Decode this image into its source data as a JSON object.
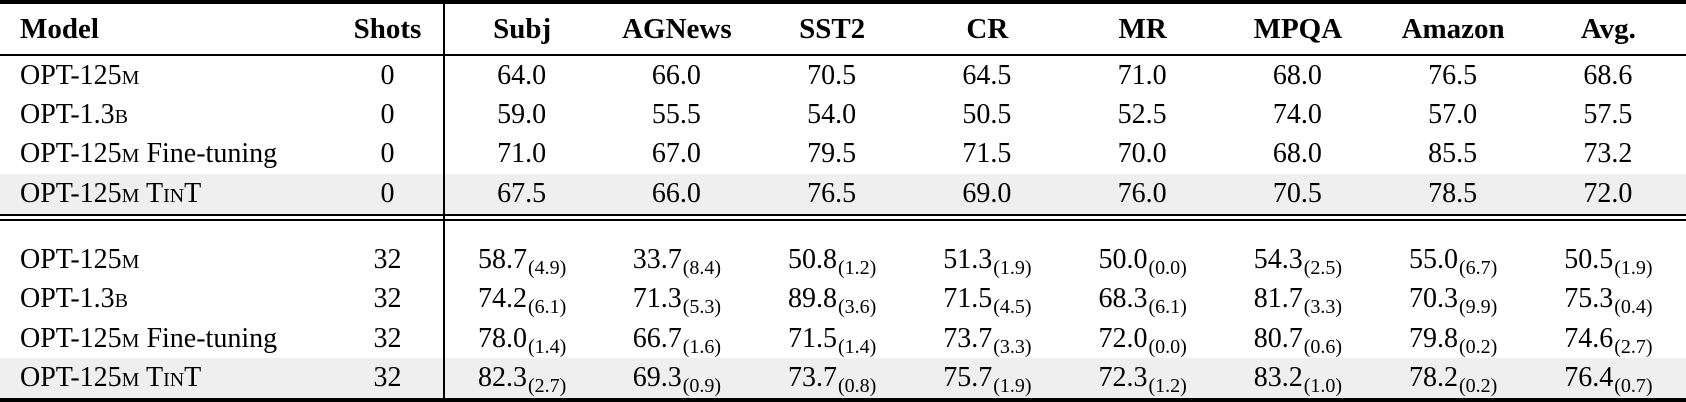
{
  "columns": [
    "Model",
    "Shots",
    "Subj",
    "AGNews",
    "SST2",
    "CR",
    "MR",
    "MPQA",
    "Amazon",
    "Avg."
  ],
  "sections": [
    {
      "rows": [
        {
          "model": [
            {
              "t": "OPT-125"
            },
            {
              "t": "m",
              "sc": true
            }
          ],
          "shots": "0",
          "highlight": false,
          "cells": [
            {
              "v": "64.0"
            },
            {
              "v": "66.0"
            },
            {
              "v": "70.5"
            },
            {
              "v": "64.5"
            },
            {
              "v": "71.0"
            },
            {
              "v": "68.0"
            },
            {
              "v": "76.5"
            },
            {
              "v": "68.6"
            }
          ]
        },
        {
          "model": [
            {
              "t": "OPT-1.3"
            },
            {
              "t": "b",
              "sc": true
            }
          ],
          "shots": "0",
          "highlight": false,
          "cells": [
            {
              "v": "59.0"
            },
            {
              "v": "55.5"
            },
            {
              "v": "54.0"
            },
            {
              "v": "50.5"
            },
            {
              "v": "52.5"
            },
            {
              "v": "74.0"
            },
            {
              "v": "57.0"
            },
            {
              "v": "57.5"
            }
          ]
        },
        {
          "model": [
            {
              "t": "OPT-125"
            },
            {
              "t": "m",
              "sc": true
            },
            {
              "t": " Fine-tuning"
            }
          ],
          "shots": "0",
          "highlight": false,
          "cells": [
            {
              "v": "71.0"
            },
            {
              "v": "67.0"
            },
            {
              "v": "79.5"
            },
            {
              "v": "71.5"
            },
            {
              "v": "70.0"
            },
            {
              "v": "68.0"
            },
            {
              "v": "85.5"
            },
            {
              "v": "73.2"
            }
          ]
        },
        {
          "model": [
            {
              "t": "OPT-125"
            },
            {
              "t": "m",
              "sc": true
            },
            {
              "t": " T"
            },
            {
              "t": "in",
              "sc": true
            },
            {
              "t": "T"
            }
          ],
          "shots": "0",
          "highlight": true,
          "cells": [
            {
              "v": "67.5"
            },
            {
              "v": "66.0"
            },
            {
              "v": "76.5"
            },
            {
              "v": "69.0"
            },
            {
              "v": "76.0"
            },
            {
              "v": "70.5"
            },
            {
              "v": "78.5"
            },
            {
              "v": "72.0"
            }
          ]
        }
      ]
    },
    {
      "rows": [
        {
          "model": [
            {
              "t": "OPT-125"
            },
            {
              "t": "m",
              "sc": true
            }
          ],
          "shots": "32",
          "highlight": false,
          "cells": [
            {
              "v": "58.7",
              "s": "(4.9)"
            },
            {
              "v": "33.7",
              "s": "(8.4)"
            },
            {
              "v": "50.8",
              "s": "(1.2)"
            },
            {
              "v": "51.3",
              "s": "(1.9)"
            },
            {
              "v": "50.0",
              "s": "(0.0)"
            },
            {
              "v": "54.3",
              "s": "(2.5)"
            },
            {
              "v": "55.0",
              "s": "(6.7)"
            },
            {
              "v": "50.5",
              "s": "(1.9)"
            }
          ]
        },
        {
          "model": [
            {
              "t": "OPT-1.3"
            },
            {
              "t": "b",
              "sc": true
            }
          ],
          "shots": "32",
          "highlight": false,
          "cells": [
            {
              "v": "74.2",
              "s": "(6.1)"
            },
            {
              "v": "71.3",
              "s": "(5.3)"
            },
            {
              "v": "89.8",
              "s": "(3.6)"
            },
            {
              "v": "71.5",
              "s": "(4.5)"
            },
            {
              "v": "68.3",
              "s": "(6.1)"
            },
            {
              "v": "81.7",
              "s": "(3.3)"
            },
            {
              "v": "70.3",
              "s": "(9.9)"
            },
            {
              "v": "75.3",
              "s": "(0.4)"
            }
          ]
        },
        {
          "model": [
            {
              "t": "OPT-125"
            },
            {
              "t": "m",
              "sc": true
            },
            {
              "t": " Fine-tuning"
            }
          ],
          "shots": "32",
          "highlight": false,
          "cells": [
            {
              "v": "78.0",
              "s": "(1.4)"
            },
            {
              "v": "66.7",
              "s": "(1.6)"
            },
            {
              "v": "71.5",
              "s": "(1.4)"
            },
            {
              "v": "73.7",
              "s": "(3.3)"
            },
            {
              "v": "72.0",
              "s": "(0.0)"
            },
            {
              "v": "80.7",
              "s": "(0.6)"
            },
            {
              "v": "79.8",
              "s": "(0.2)"
            },
            {
              "v": "74.6",
              "s": "(2.7)"
            }
          ]
        },
        {
          "model": [
            {
              "t": "OPT-125"
            },
            {
              "t": "m",
              "sc": true
            },
            {
              "t": " T"
            },
            {
              "t": "in",
              "sc": true
            },
            {
              "t": "T"
            }
          ],
          "shots": "32",
          "highlight": true,
          "cells": [
            {
              "v": "82.3",
              "s": "(2.7)"
            },
            {
              "v": "69.3",
              "s": "(0.9)"
            },
            {
              "v": "73.7",
              "s": "(0.8)"
            },
            {
              "v": "75.7",
              "s": "(1.9)"
            },
            {
              "v": "72.3",
              "s": "(1.2)"
            },
            {
              "v": "83.2",
              "s": "(1.0)"
            },
            {
              "v": "78.2",
              "s": "(0.2)"
            },
            {
              "v": "76.4",
              "s": "(0.7)"
            }
          ]
        }
      ]
    }
  ],
  "colors": {
    "highlight_row": "#efefef",
    "text": "#000000",
    "rule": "#000000"
  }
}
